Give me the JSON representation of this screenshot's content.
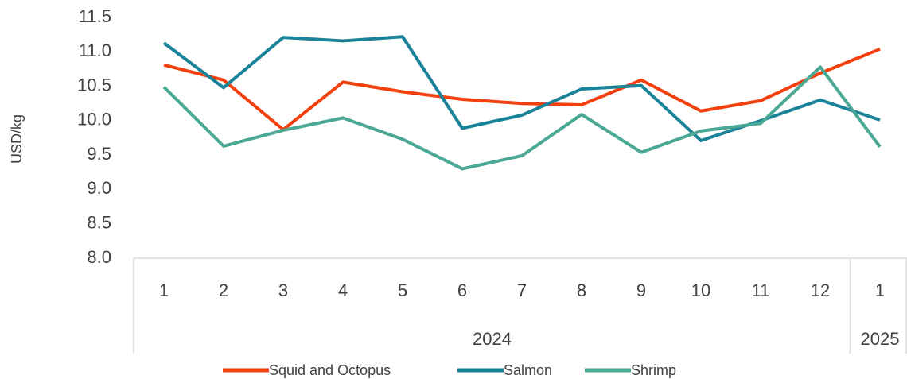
{
  "chart_data": {
    "type": "line",
    "y_label": "USD/kg",
    "category_groups": [
      {
        "name": "2024",
        "categories": [
          "1",
          "2",
          "3",
          "4",
          "5",
          "6",
          "7",
          "8",
          "9",
          "10",
          "11",
          "12"
        ]
      },
      {
        "name": "2025",
        "categories": [
          "1"
        ]
      }
    ],
    "series": [
      {
        "name": "Squid and Octopus",
        "color": "#f4400f",
        "values": [
          10.81,
          10.59,
          9.87,
          10.56,
          10.42,
          10.31,
          10.25,
          10.23,
          10.59,
          10.14,
          10.29,
          10.69,
          11.04
        ]
      },
      {
        "name": "Salmon",
        "color": "#1b8399",
        "values": [
          11.13,
          10.48,
          11.21,
          11.16,
          11.22,
          9.89,
          10.08,
          10.46,
          10.51,
          9.71,
          10.0,
          10.3,
          10.01
        ]
      },
      {
        "name": "Shrimp",
        "color": "#4aa894",
        "values": [
          10.49,
          9.63,
          9.86,
          10.04,
          9.73,
          9.3,
          9.49,
          10.09,
          9.54,
          9.85,
          9.96,
          10.78,
          9.62
        ]
      }
    ],
    "ylim": [
      8,
      11.5
    ],
    "yticks": [
      {
        "value": 8,
        "label": "8.0"
      },
      8.5,
      {
        "value": 9,
        "label": "9.0"
      },
      9.5,
      {
        "value": 10,
        "label": "10.0"
      },
      10.5,
      {
        "value": 11,
        "label": "11.0"
      },
      11.5
    ],
    "grid": false,
    "legend": "bottom"
  }
}
